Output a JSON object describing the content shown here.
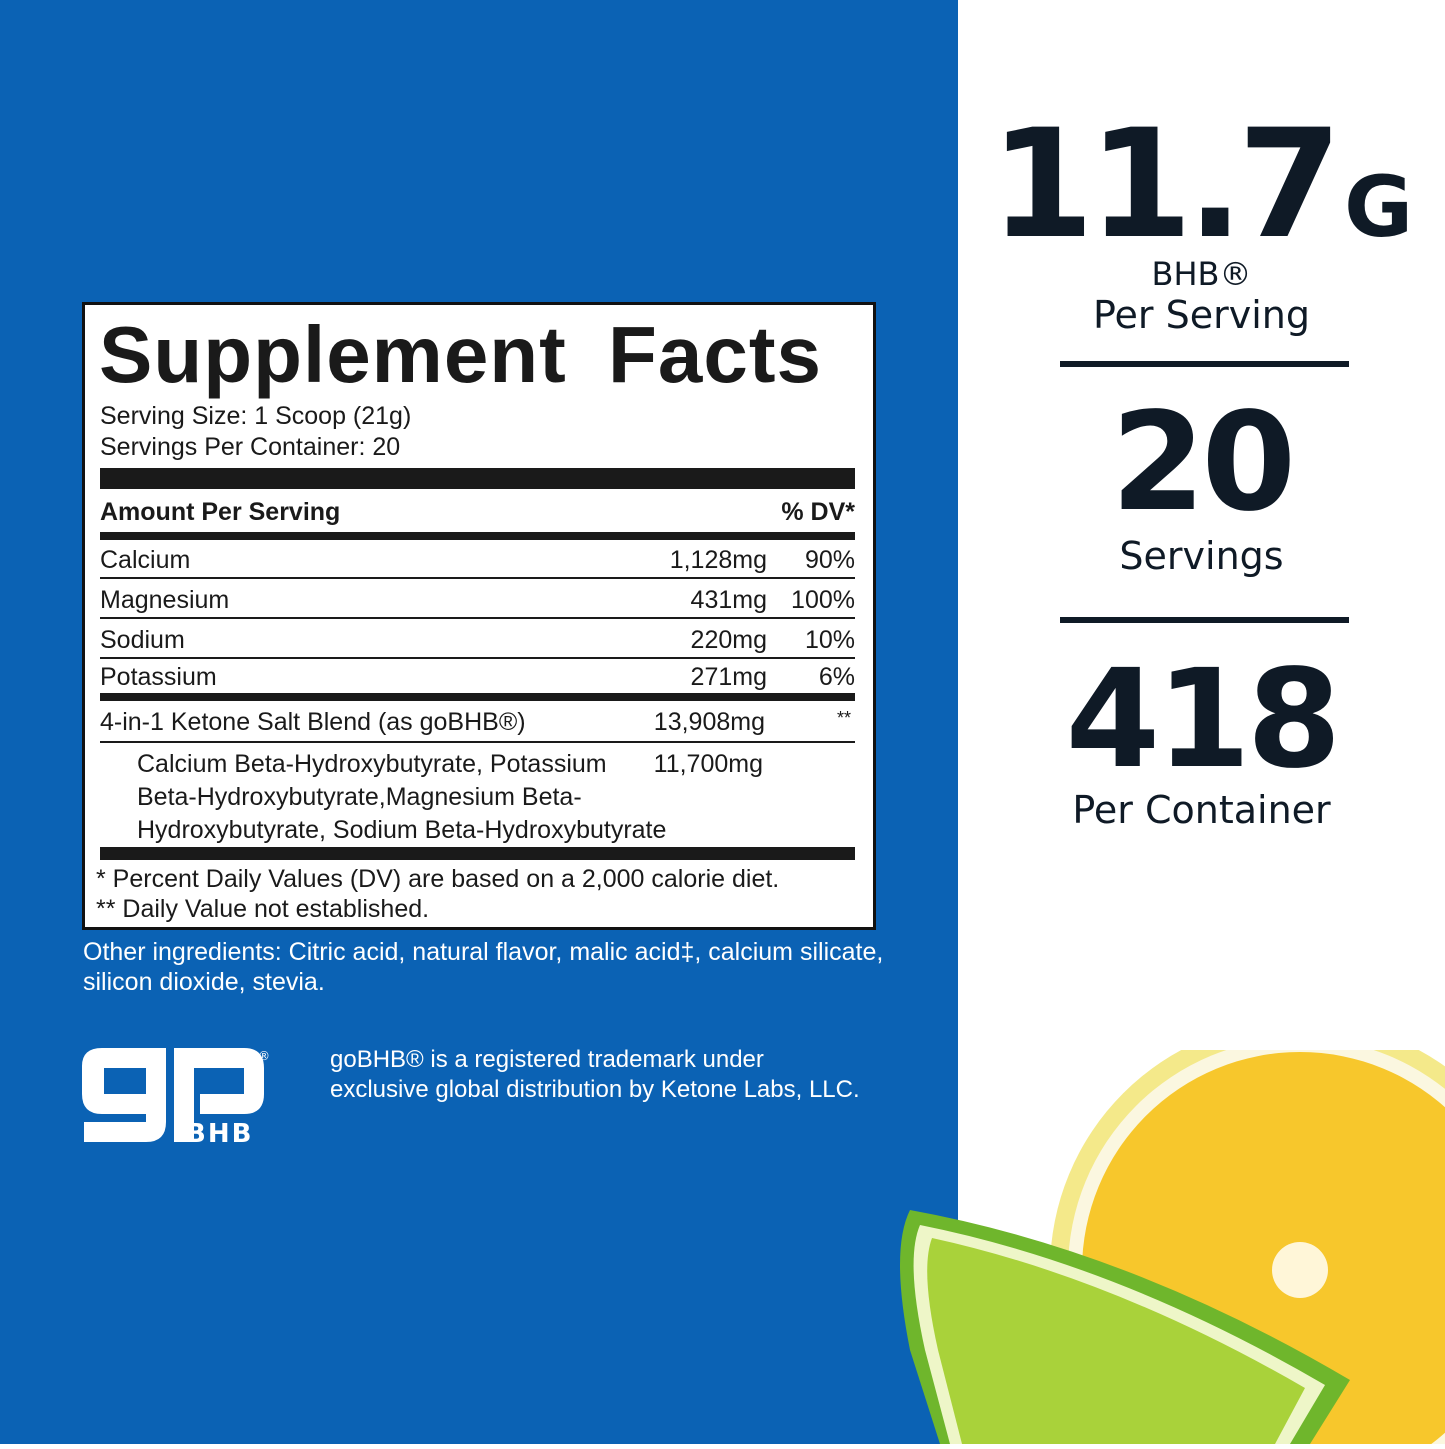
{
  "colors": {
    "panel": "#0b62b4",
    "text": "#0f1a26"
  },
  "facts": {
    "title": "Supplement Facts",
    "serving_size": "Serving Size: 1 Scoop (21g)",
    "servings_per_container": "Servings Per Container: 20",
    "amount_header": "Amount Per Serving",
    "dv_header": "% DV*",
    "rows": [
      {
        "name": "Calcium",
        "amount": "1,128mg",
        "dv": "90%"
      },
      {
        "name": "Magnesium",
        "amount": "431mg",
        "dv": "100%"
      },
      {
        "name": "Sodium",
        "amount": "220mg",
        "dv": "10%"
      },
      {
        "name": "Potassium",
        "amount": "271mg",
        "dv": "6%"
      }
    ],
    "blend": {
      "name": "4-in-1 Ketone Salt Blend (as goBHB®)",
      "amount": "13,908mg",
      "dv": "**"
    },
    "blend_sub": {
      "lines": [
        "Calcium Beta-Hydroxybutyrate, Potassium",
        "Beta-Hydroxybutyrate,Magnesium Beta-",
        "Hydroxybutyrate, Sodium Beta-Hydroxybutyrate"
      ],
      "amount": "11,700mg"
    },
    "footnote1": "* Percent Daily Values (DV) are based on a 2,000 calorie diet.",
    "footnote2": "** Daily Value not established."
  },
  "other_ingredients": [
    "Other ingredients: Citric acid, natural flavor, malic acid‡, calcium silicate,",
    "silicon dioxide, stevia."
  ],
  "logo": {
    "text": "goBHB",
    "mark": "®"
  },
  "trademark": [
    "goBHB® is a registered trademark under",
    "exclusive global distribution by Ketone Labs, LLC."
  ],
  "stats": [
    {
      "value": "11.7",
      "unit": "G",
      "label1": "BHB®",
      "label2": "Per Serving"
    },
    {
      "value": "20",
      "label1": "Servings"
    },
    {
      "value": "418",
      "label1": "Per Container"
    }
  ]
}
